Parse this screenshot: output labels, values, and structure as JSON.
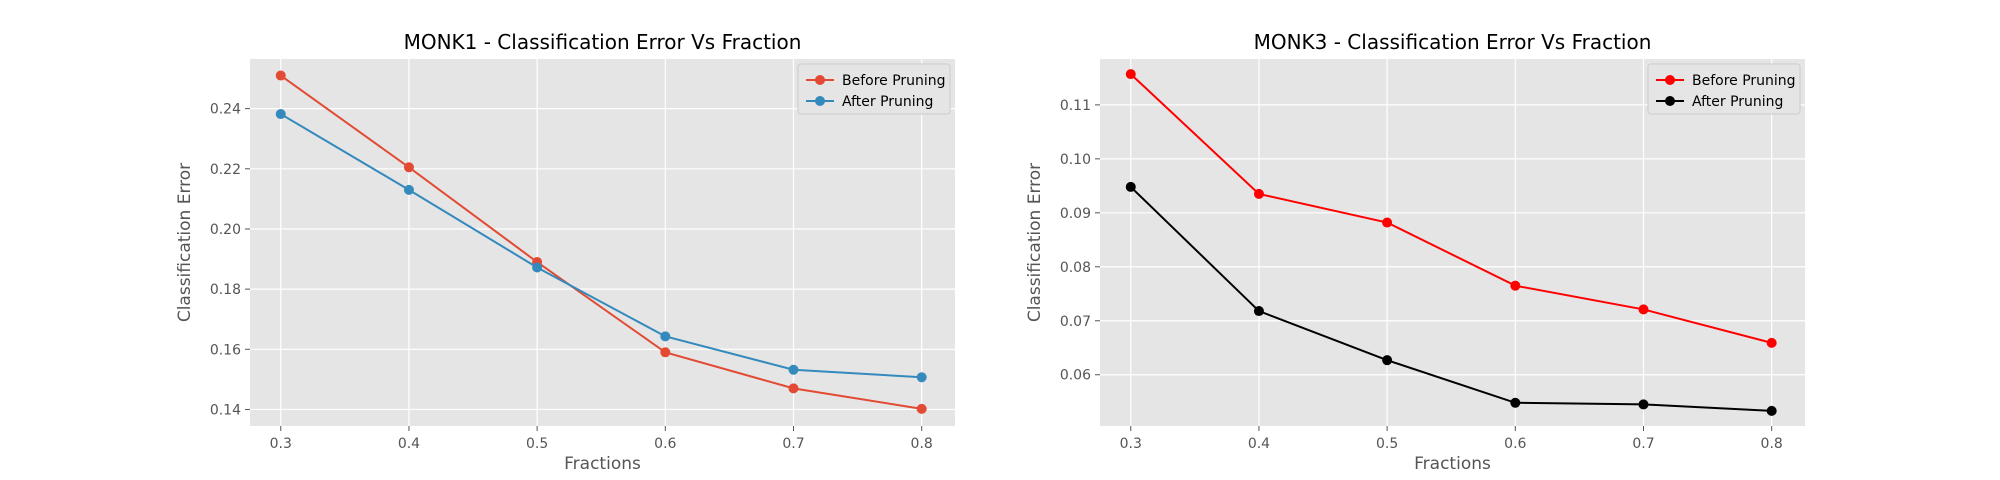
{
  "chart_data": [
    {
      "type": "line",
      "title": "MONK1 - Classification Error Vs Fraction",
      "xlabel": "Fractions",
      "ylabel": "Classification Error",
      "x": [
        0.3,
        0.4,
        0.5,
        0.6,
        0.7,
        0.8
      ],
      "xticks": [
        "0.3",
        "0.4",
        "0.5",
        "0.6",
        "0.7",
        "0.8"
      ],
      "yticks": [
        "0.14",
        "0.16",
        "0.18",
        "0.20",
        "0.22",
        "0.24"
      ],
      "ytick_values": [
        0.14,
        0.16,
        0.18,
        0.2,
        0.22,
        0.24
      ],
      "xlim": [
        0.276,
        0.826
      ],
      "ylim": [
        0.1345,
        0.2565
      ],
      "grid": true,
      "legend": "top-right",
      "series": [
        {
          "name": "Before Pruning",
          "color": "#E24A33",
          "values": [
            0.251,
            0.2205,
            0.189,
            0.159,
            0.147,
            0.1402
          ]
        },
        {
          "name": "After Pruning",
          "color": "#348ABD",
          "values": [
            0.2382,
            0.213,
            0.1872,
            0.1643,
            0.1532,
            0.1507
          ]
        }
      ]
    },
    {
      "type": "line",
      "title": "MONK3 - Classification Error Vs Fraction",
      "xlabel": "Fractions",
      "ylabel": "Classification Error",
      "x": [
        0.3,
        0.4,
        0.5,
        0.6,
        0.7,
        0.8
      ],
      "xticks": [
        "0.3",
        "0.4",
        "0.5",
        "0.6",
        "0.7",
        "0.8"
      ],
      "yticks": [
        "0.06",
        "0.07",
        "0.08",
        "0.09",
        "0.10",
        "0.11"
      ],
      "ytick_values": [
        0.06,
        0.07,
        0.08,
        0.09,
        0.1,
        0.11
      ],
      "xlim": [
        0.276,
        0.826
      ],
      "ylim": [
        0.0505,
        0.1185
      ],
      "grid": true,
      "legend": "top-right",
      "series": [
        {
          "name": "Before Pruning",
          "color": "#FF0000",
          "values": [
            0.1157,
            0.0935,
            0.0882,
            0.0765,
            0.0721,
            0.0659
          ]
        },
        {
          "name": "After Pruning",
          "color": "#000000",
          "values": [
            0.0948,
            0.0718,
            0.0627,
            0.0548,
            0.0545,
            0.0533
          ]
        }
      ]
    }
  ]
}
